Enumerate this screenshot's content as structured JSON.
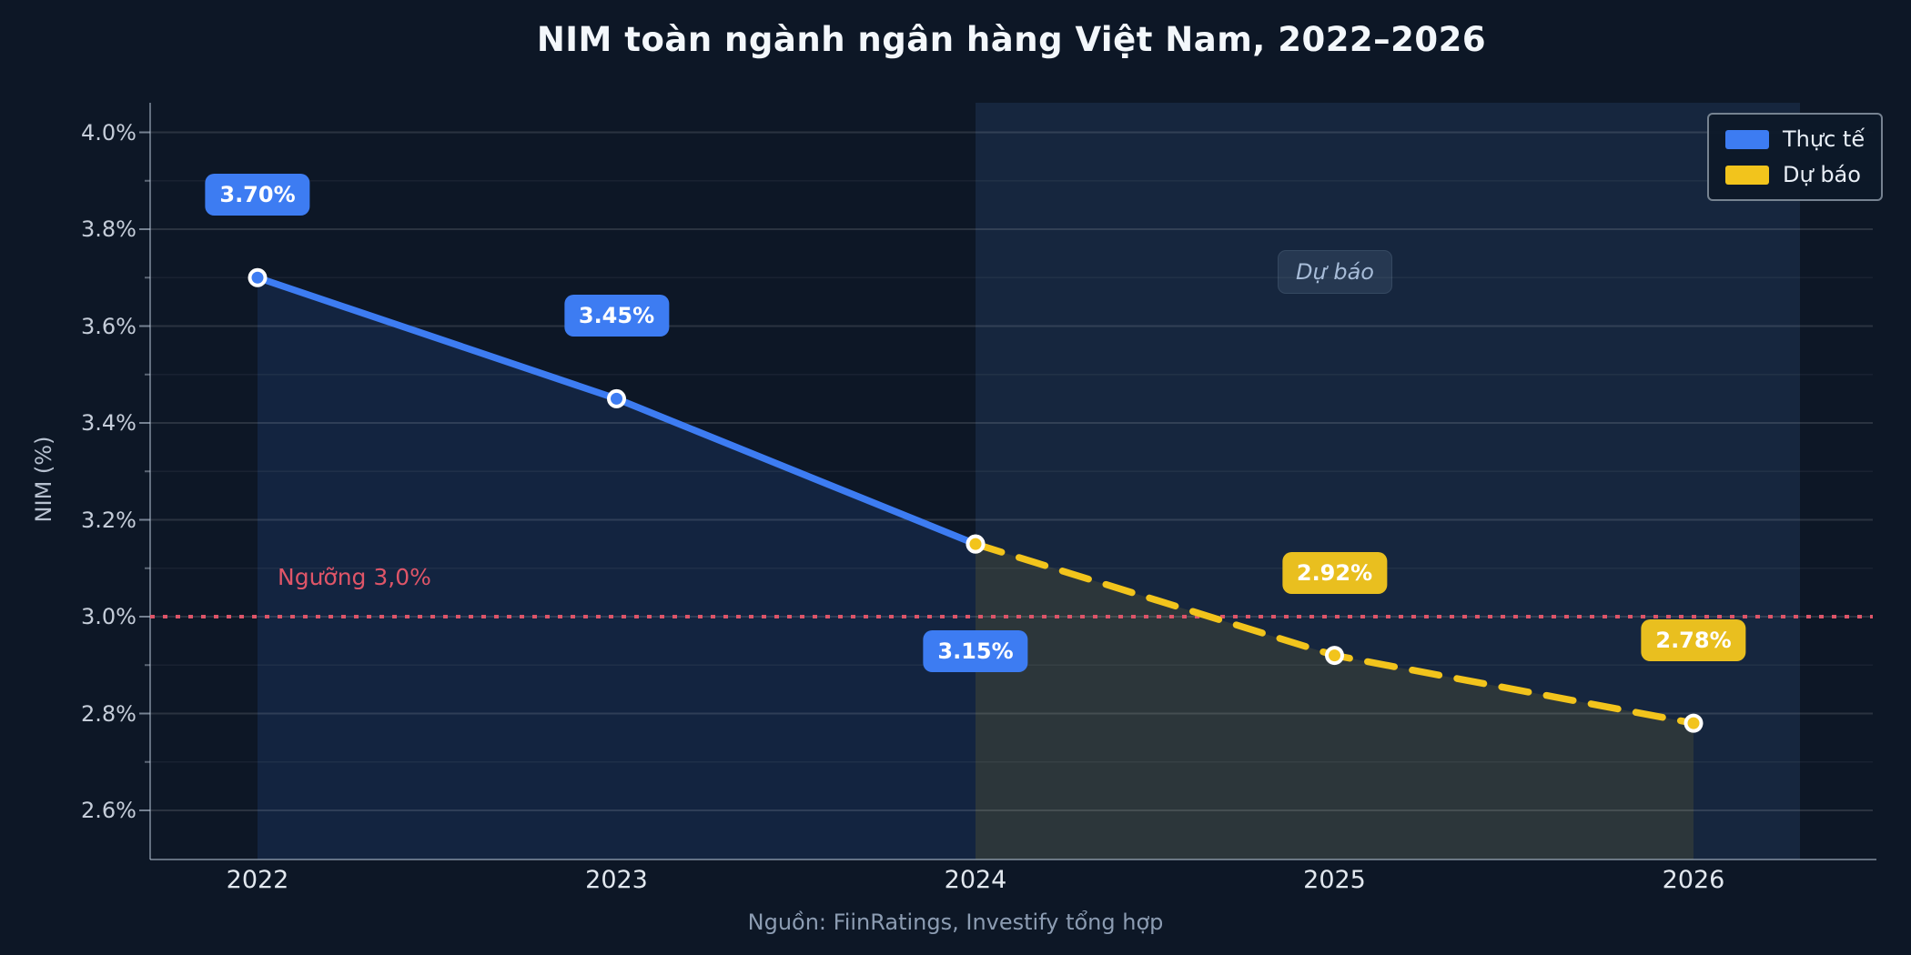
{
  "title": "NIM toàn ngành ngân hàng Việt Nam, 2022–2026",
  "source": "Nguồn: FiinRatings, Investify tổng hợp",
  "ylabel": "NIM (%)",
  "legend": {
    "items": [
      {
        "label": "Thực tế",
        "color": "#3d7cf2"
      },
      {
        "label": "Dự báo",
        "color": "#f2c41c"
      }
    ]
  },
  "annotations": {
    "forecast_box": "Dự báo",
    "threshold_label": "Ngưỡng 3,0%"
  },
  "colors": {
    "background": "#0d1726",
    "forecast_band": "#16263e",
    "actual_line": "#3d7cf2",
    "forecast_line": "#f2c41c",
    "threshold_line": "#dd5468",
    "badge_actual_bg": "#3d7cf2",
    "badge_forecast_bg": "#e9bf1f"
  },
  "chart_data": {
    "type": "line",
    "title": "NIM toàn ngành ngân hàng Việt Nam, 2022–2026",
    "xlabel": "",
    "ylabel": "NIM (%)",
    "x": [
      2022,
      2023,
      2024,
      2025,
      2026
    ],
    "x_labels": [
      "2022",
      "2023",
      "2024",
      "2025",
      "2026"
    ],
    "series": [
      {
        "name": "Thực tế",
        "x": [
          2022,
          2023,
          2024
        ],
        "values": [
          3.7,
          3.45,
          3.15
        ],
        "color": "#3d7cf2",
        "line_style": "solid"
      },
      {
        "name": "Dự báo",
        "x": [
          2024,
          2025,
          2026
        ],
        "values": [
          3.15,
          2.92,
          2.78
        ],
        "color": "#f2c41c",
        "line_style": "dashed"
      }
    ],
    "point_labels": [
      {
        "x": 2022,
        "value": 3.7,
        "text": "3.70%",
        "variant": "actual",
        "placement": "above"
      },
      {
        "x": 2023,
        "value": 3.45,
        "text": "3.45%",
        "variant": "actual",
        "placement": "above"
      },
      {
        "x": 2024,
        "value": 3.15,
        "text": "3.15%",
        "variant": "actual",
        "placement": "below"
      },
      {
        "x": 2025,
        "value": 2.92,
        "text": "2.92%",
        "variant": "forecast",
        "placement": "above"
      },
      {
        "x": 2026,
        "value": 2.78,
        "text": "2.78%",
        "variant": "forecast",
        "placement": "above"
      }
    ],
    "threshold": {
      "value": 3.0,
      "label": "Ngưỡng 3,0%"
    },
    "forecast_band": {
      "from": 2024,
      "label": "Dự báo"
    },
    "yticks": [
      4.0,
      3.8,
      3.6,
      3.4,
      3.2,
      3.0,
      2.8,
      2.6
    ],
    "ytick_labels": [
      "4.0%",
      "3.8%",
      "3.6%",
      "3.4%",
      "3.2%",
      "3.0%",
      "2.8%",
      "2.6%"
    ],
    "ylim": [
      2.5,
      4.05
    ],
    "grid": true,
    "legend_position": "top-right"
  }
}
